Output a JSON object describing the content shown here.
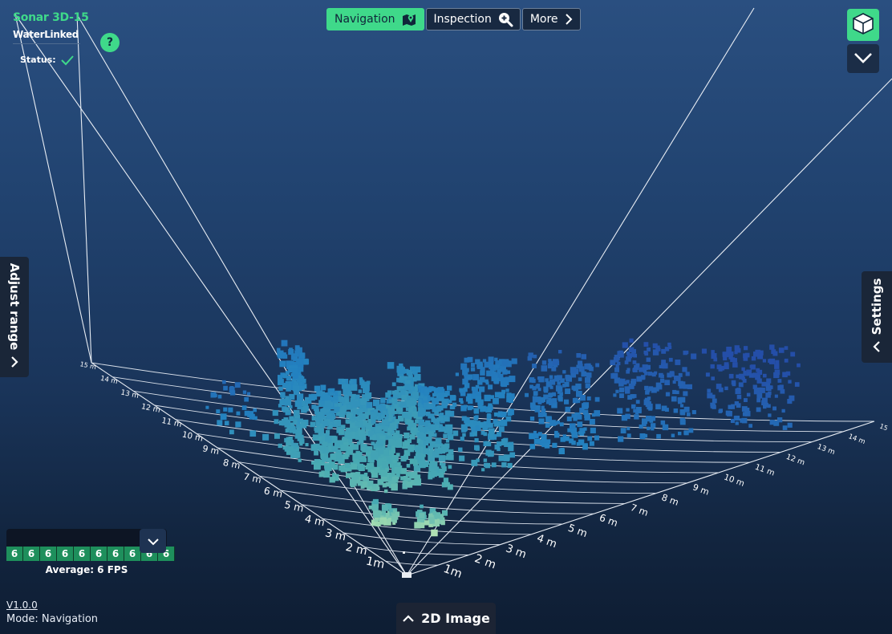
{
  "app": {
    "product_name": "Sonar 3D-15",
    "company_name": "WaterLinked",
    "status_label": "Status:",
    "status_icon": "check-icon",
    "help_label": "?",
    "accent_color": "#3fd98a"
  },
  "nav": {
    "tabs": [
      {
        "label": "Navigation",
        "icon": "map-marker-icon",
        "active": true
      },
      {
        "label": "Inspection",
        "icon": "zoom-in-icon",
        "active": false
      },
      {
        "label": "More",
        "icon": "chevron-right-icon",
        "active": false
      }
    ]
  },
  "view_controls": {
    "view_icon": "cube-3d-icon",
    "menu_icon": "chevron-down-icon"
  },
  "side_panels": {
    "left_label": "Adjust range",
    "right_label": "Settings"
  },
  "range_labels": {
    "left": [
      "15 m",
      "14 m",
      "13 m",
      "12 m",
      "11 m",
      "10 m",
      "9 m",
      "8 m",
      "7 m",
      "6 m",
      "5 m",
      "4 m",
      "3 m",
      "2 m",
      "1m"
    ],
    "right": [
      "15",
      "14 m",
      "13 m",
      "12 m",
      "11 m",
      "10 m",
      "9 m",
      "8 m",
      "7 m",
      "6 m",
      "5 m",
      "4 m",
      "3 m",
      "2 m",
      "1m"
    ]
  },
  "fps": {
    "values": [
      "6",
      "6",
      "6",
      "6",
      "6",
      "6",
      "6",
      "6",
      "6",
      "6"
    ],
    "average_label": "Average: 6 FPS"
  },
  "footer": {
    "version": "V1.0.0",
    "mode": "Mode: Navigation",
    "image_2d_label": "2D Image"
  }
}
